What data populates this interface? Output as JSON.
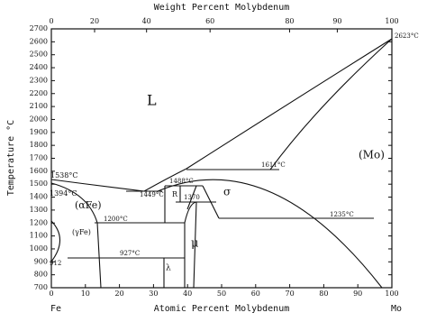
{
  "chart_data": {
    "type": "phase-diagram",
    "x2label": "Weight Percent Molybdenum",
    "xlabel": "Atomic Percent Molybdenum",
    "ylabel": "Temperature °C",
    "xlim": [
      0,
      100
    ],
    "ylim": [
      700,
      2700
    ],
    "xticks": [
      0,
      10,
      20,
      30,
      40,
      50,
      60,
      70,
      80,
      90,
      100
    ],
    "yticks": [
      700,
      800,
      900,
      1000,
      1100,
      1200,
      1300,
      1400,
      1500,
      1600,
      1700,
      1800,
      1900,
      2000,
      2100,
      2200,
      2300,
      2400,
      2500,
      2600,
      2700
    ],
    "x2ticks": [
      {
        "value": 0,
        "label": "0"
      },
      {
        "value": 12.7,
        "label": "20"
      },
      {
        "value": 27.96,
        "label": "40"
      },
      {
        "value": 46.61,
        "label": "60"
      },
      {
        "value": 69.96,
        "label": "80"
      },
      {
        "value": 83.97,
        "label": "90"
      },
      {
        "value": 100,
        "label": "100"
      }
    ],
    "end_labels": [
      "Fe",
      "Mo"
    ],
    "annotations": [
      "L",
      "(Mo)",
      "(αFe)",
      "(γFe)",
      "σ",
      "μ",
      "λ",
      "R",
      "1538°C",
      "1394°C",
      "912",
      "1449°C",
      "1488°C",
      "1370",
      "1611°C",
      "1200°C",
      "1235°C",
      "927°C",
      "2623°C"
    ]
  }
}
